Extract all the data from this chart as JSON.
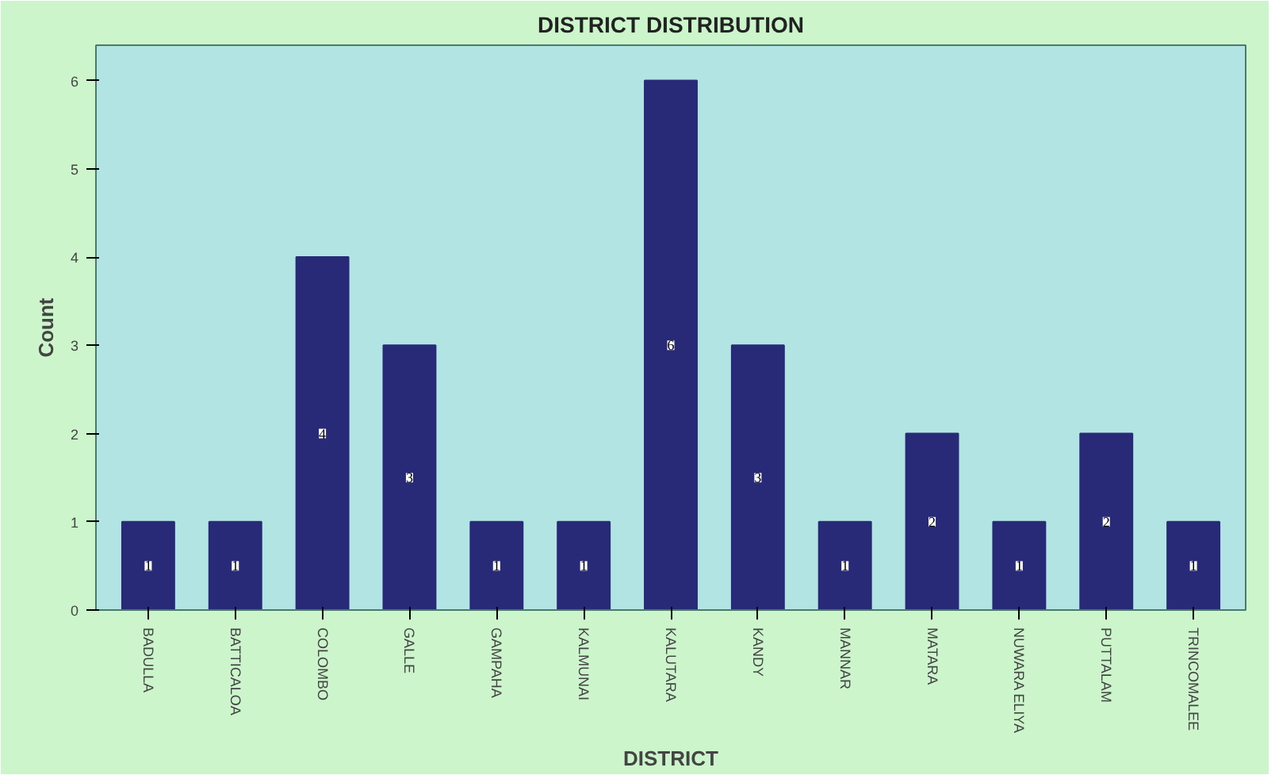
{
  "chart_data": {
    "type": "bar",
    "title": "DISTRICT DISTRIBUTION",
    "xlabel": "DISTRICT",
    "ylabel": "Count",
    "categories": [
      "BADULLA",
      "BATTICALOA",
      "COLOMBO",
      "GALLE",
      "GAMPAHA",
      "KALMUNAI",
      "KALUTARA",
      "KANDY",
      "MANNAR",
      "MATARA",
      "NUWARA ELIYA",
      "PUTTALAM",
      "TRINCOMALEE"
    ],
    "values": [
      1,
      1,
      4,
      3,
      1,
      1,
      6,
      3,
      1,
      2,
      1,
      2,
      1
    ],
    "color": "#282a78",
    "ylim": [
      0,
      6.4
    ],
    "yticks": [
      0,
      1,
      2,
      3,
      4,
      5,
      6
    ],
    "grid": false,
    "data_labels": true
  }
}
